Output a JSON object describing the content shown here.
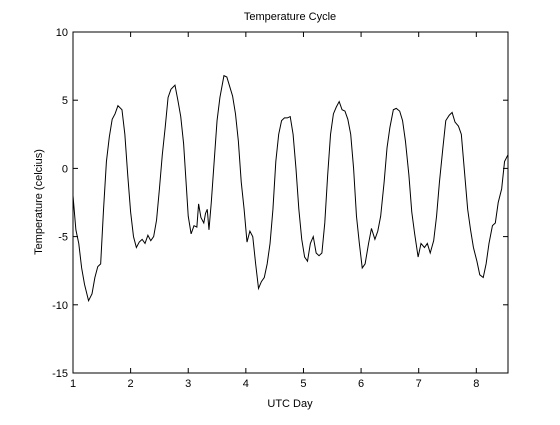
{
  "chart_data": {
    "type": "line",
    "title": "Temperature Cycle",
    "x_label": "UTC Day",
    "y_label": "Temperature (celcius)",
    "color": "#000000",
    "xlim": [
      1,
      8.55
    ],
    "ylim": [
      -15,
      10
    ],
    "xticks": [
      1,
      2,
      3,
      4,
      5,
      6,
      7,
      8
    ],
    "yticks": [
      -15,
      -10,
      -5,
      0,
      5,
      10
    ],
    "x": [
      1.0,
      1.05,
      1.1,
      1.15,
      1.2,
      1.27,
      1.33,
      1.38,
      1.43,
      1.48,
      1.53,
      1.58,
      1.63,
      1.68,
      1.73,
      1.78,
      1.85,
      1.9,
      1.95,
      2.0,
      2.05,
      2.1,
      2.15,
      2.2,
      2.25,
      2.3,
      2.35,
      2.4,
      2.45,
      2.5,
      2.55,
      2.6,
      2.65,
      2.7,
      2.77,
      2.82,
      2.87,
      2.92,
      2.97,
      3.0,
      3.05,
      3.1,
      3.15,
      3.18,
      3.22,
      3.27,
      3.3,
      3.33,
      3.36,
      3.4,
      3.45,
      3.5,
      3.55,
      3.62,
      3.67,
      3.72,
      3.77,
      3.82,
      3.87,
      3.92,
      3.97,
      4.02,
      4.07,
      4.12,
      4.17,
      4.22,
      4.27,
      4.32,
      4.37,
      4.42,
      4.47,
      4.52,
      4.57,
      4.62,
      4.67,
      4.72,
      4.77,
      4.82,
      4.87,
      4.92,
      4.97,
      5.02,
      5.07,
      5.12,
      5.17,
      5.22,
      5.27,
      5.32,
      5.37,
      5.42,
      5.47,
      5.52,
      5.57,
      5.62,
      5.67,
      5.72,
      5.77,
      5.82,
      5.87,
      5.92,
      5.97,
      6.02,
      6.07,
      6.13,
      6.18,
      6.24,
      6.29,
      6.34,
      6.4,
      6.45,
      6.5,
      6.56,
      6.61,
      6.67,
      6.72,
      6.77,
      6.83,
      6.88,
      6.93,
      6.99,
      7.04,
      7.1,
      7.15,
      7.2,
      7.26,
      7.31,
      7.36,
      7.42,
      7.47,
      7.53,
      7.58,
      7.63,
      7.69,
      7.74,
      7.79,
      7.85,
      7.9,
      7.95,
      8.01,
      8.06,
      8.12,
      8.17,
      8.22,
      8.28,
      8.33,
      8.38,
      8.44,
      8.49,
      8.55
    ],
    "values": [
      -2,
      -4.5,
      -5.5,
      -7.3,
      -8.5,
      -9.7,
      -9.2,
      -8,
      -7.2,
      -7,
      -3,
      0.5,
      2.3,
      3.6,
      4,
      4.6,
      4.3,
      2.5,
      -0.5,
      -3.2,
      -5,
      -5.8,
      -5.4,
      -5.2,
      -5.5,
      -4.9,
      -5.3,
      -5,
      -3.8,
      -1.5,
      1,
      3,
      5.2,
      5.8,
      6.1,
      5,
      3.8,
      1.8,
      -1.5,
      -3.5,
      -4.8,
      -4.2,
      -4.3,
      -2.6,
      -3.6,
      -4,
      -3.3,
      -3,
      -4.5,
      -2.5,
      0.5,
      3.5,
      5.2,
      6.8,
      6.7,
      6,
      5.3,
      4,
      2,
      -1,
      -3,
      -5.4,
      -4.6,
      -5,
      -7,
      -8.8,
      -8.3,
      -8,
      -7,
      -5.5,
      -3,
      0.5,
      2.5,
      3.5,
      3.7,
      3.7,
      3.8,
      2.5,
      0,
      -3,
      -5.2,
      -6.5,
      -6.8,
      -5.5,
      -5,
      -6.2,
      -6.4,
      -6.2,
      -4,
      -0.5,
      2.5,
      4,
      4.5,
      4.9,
      4.3,
      4.2,
      3.6,
      2.5,
      0,
      -3.5,
      -5.5,
      -7.3,
      -7,
      -5.5,
      -4.4,
      -5.2,
      -4.6,
      -3.5,
      -1,
      1.5,
      3,
      4.3,
      4.4,
      4.2,
      3.5,
      2,
      -0.5,
      -3.2,
      -4.8,
      -6.5,
      -5.5,
      -5.8,
      -5.5,
      -6.2,
      -5.3,
      -3.5,
      -1,
      1.5,
      3.5,
      3.9,
      4.1,
      3.4,
      3.1,
      2.5,
      0,
      -3,
      -4.5,
      -5.8,
      -6.8,
      -7.8,
      -8,
      -7,
      -5.5,
      -4.2,
      -4,
      -2.5,
      -1.5,
      0.5,
      1
    ]
  }
}
